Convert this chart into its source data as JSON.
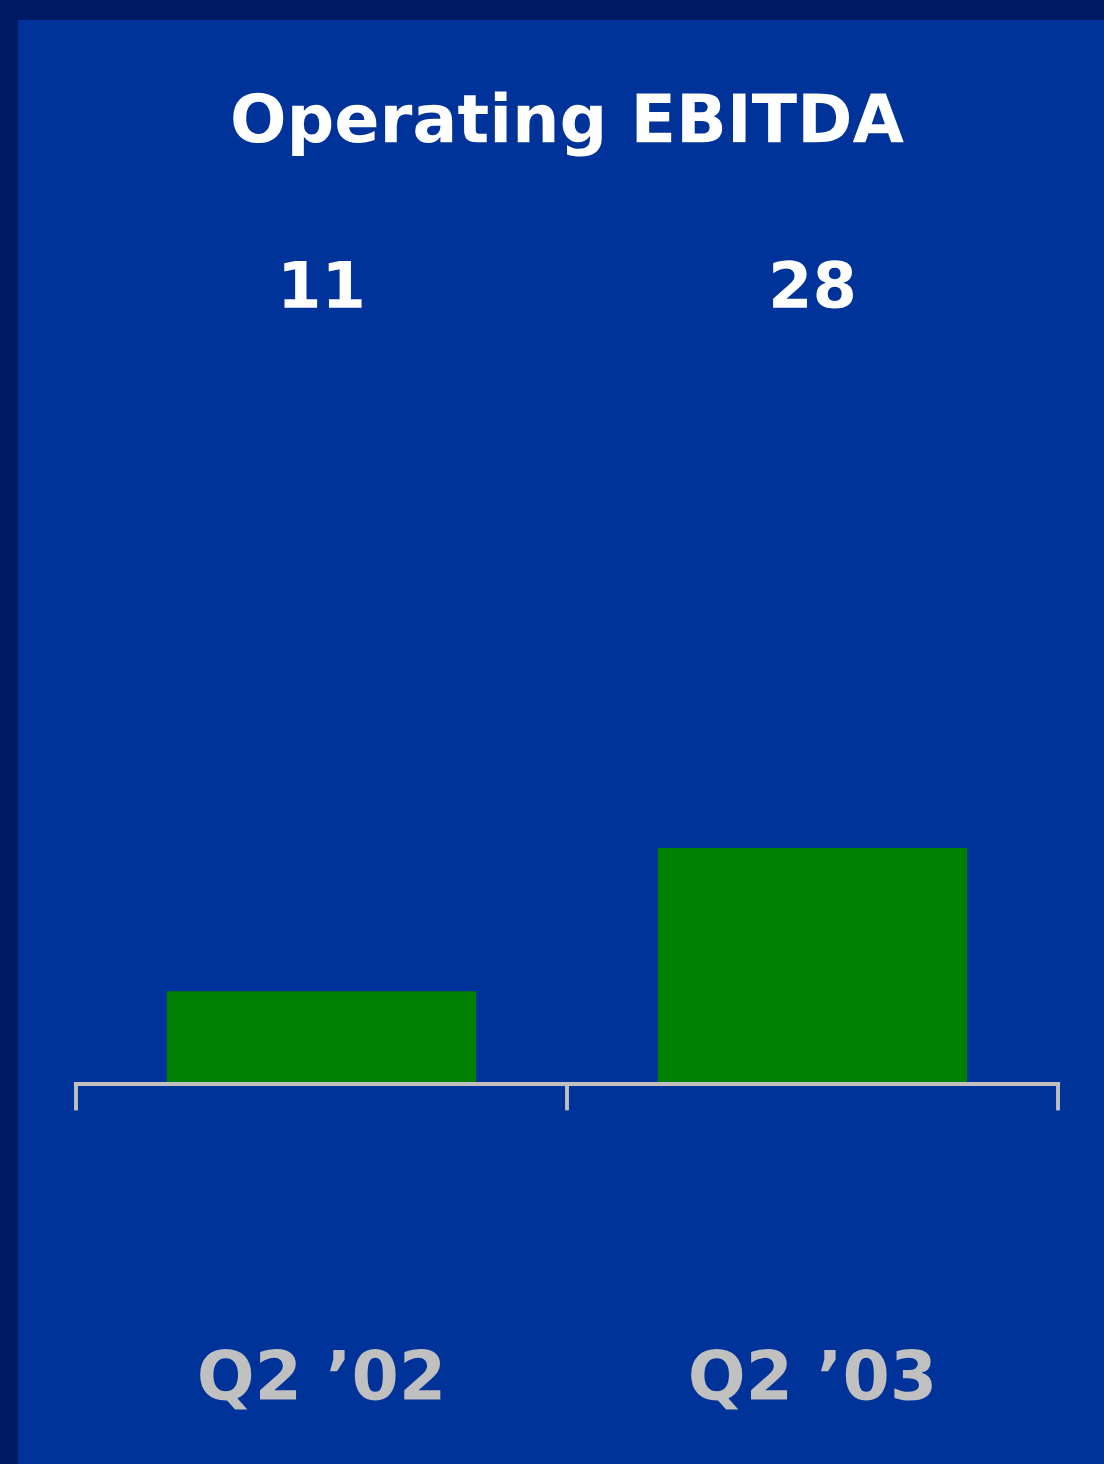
{
  "chart_data": {
    "type": "bar",
    "title": "Operating EBITDA",
    "categories": [
      "Q2 ’02",
      "Q2 ’03"
    ],
    "values": [
      11,
      28
    ],
    "color": "#008000",
    "data_labels": true,
    "tick_labels": "x"
  }
}
